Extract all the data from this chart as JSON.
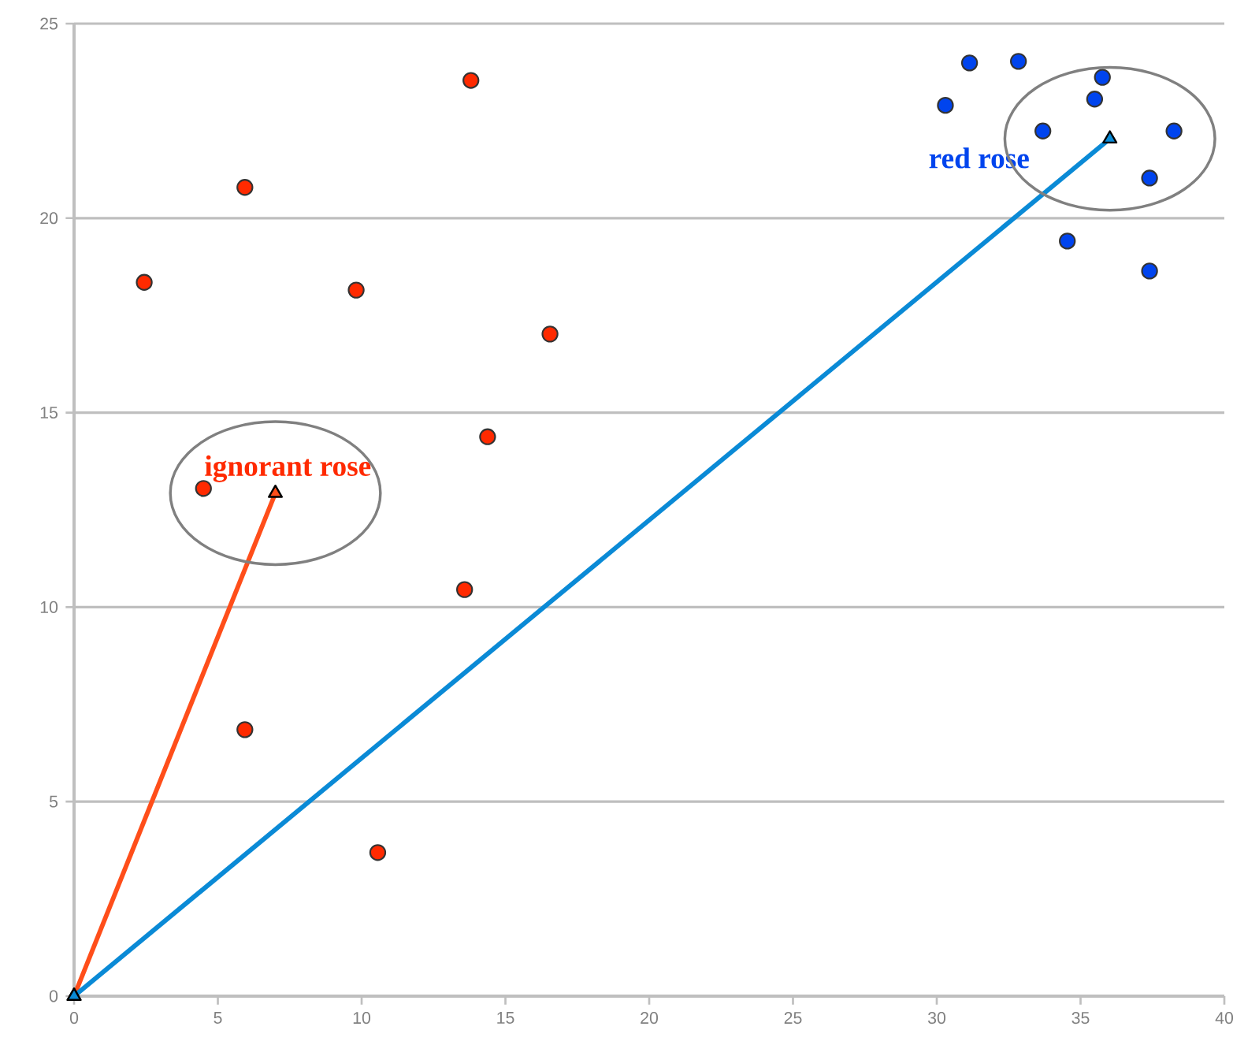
{
  "chart_data": {
    "type": "scatter",
    "series": [
      {
        "color": "#ff2a00",
        "marker": "circle",
        "x": [
          2.44,
          5.94,
          9.81,
          13.8,
          16.55,
          14.38,
          4.5,
          13.58,
          5.94,
          10.56
        ],
        "values": [
          18.35,
          20.79,
          18.15,
          23.54,
          17.02,
          14.38,
          13.05,
          10.45,
          6.85,
          3.69
        ]
      },
      {
        "color": "#0044ee",
        "marker": "circle",
        "x": [
          30.3,
          31.14,
          32.84,
          35.76,
          35.49,
          33.69,
          38.25,
          37.4,
          34.54,
          37.4
        ],
        "values": [
          22.9,
          23.99,
          24.03,
          23.62,
          23.06,
          22.24,
          22.24,
          21.03,
          19.41,
          18.64
        ]
      },
      {
        "type": "line",
        "color": "#ff4e1a",
        "marker": "triangle",
        "x": [
          0,
          7.0
        ],
        "values": [
          0,
          12.93
        ]
      },
      {
        "type": "line",
        "color": "#0a8ad6",
        "marker": "triangle",
        "x": [
          0,
          36.02
        ],
        "values": [
          0,
          22.04
        ]
      }
    ],
    "annotations": [
      {
        "text": "ignorant rose",
        "x": 7.0,
        "y": 12.93
      },
      {
        "text": "red rose",
        "x": 36.02,
        "y": 22.04
      }
    ],
    "xlim": [
      0,
      40
    ],
    "ylim": [
      0,
      25
    ],
    "xticks": [
      0,
      5,
      10,
      15,
      20,
      25,
      30,
      35,
      40
    ],
    "yticks": [
      0,
      5,
      10,
      15,
      20,
      25
    ],
    "grid": "y"
  }
}
